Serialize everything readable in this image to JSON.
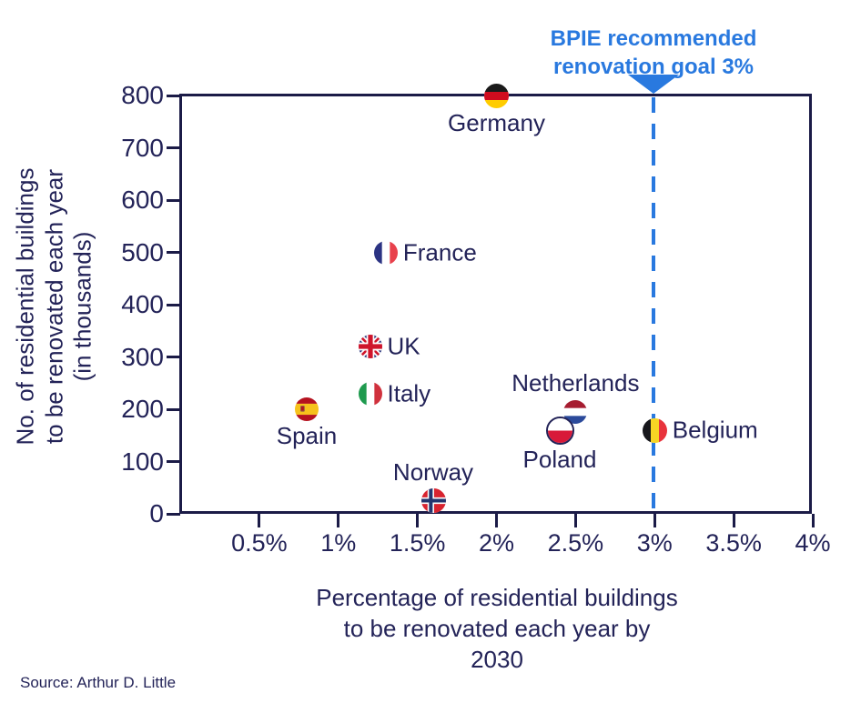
{
  "annotation": {
    "text": "BPIE recommended\nrenovation goal 3%",
    "color": "#2979df"
  },
  "source": "Source: Arthur D. Little",
  "colors": {
    "navy_text": "#232358",
    "axis": "#1b1b47",
    "accent_blue": "#2979df"
  },
  "chart_data": {
    "type": "scatter",
    "title": "",
    "xlabel": "Percentage of residential buildings\nto be renovated each year by 2030",
    "ylabel": "No. of residential buildings\nto be renovated each year\n(in thousands)",
    "xlim": [
      0,
      4
    ],
    "ylim": [
      0,
      800
    ],
    "grid": false,
    "x_tick_labels": [
      "0.5%",
      "1%",
      "1.5%",
      "2%",
      "2.5%",
      "3%",
      "3.5%",
      "4%"
    ],
    "x_tick_values": [
      0.5,
      1,
      1.5,
      2,
      2.5,
      3,
      3.5,
      4
    ],
    "y_tick_values": [
      800,
      700,
      600,
      500,
      400,
      300,
      200,
      100,
      0
    ],
    "reference_line": {
      "x": 3,
      "label": "BPIE recommended renovation goal 3%",
      "style": "dashed",
      "color": "#2979df"
    },
    "points": [
      {
        "country": "Germany",
        "x": 2.0,
        "y": 800,
        "label_pos": "below"
      },
      {
        "country": "France",
        "x": 1.3,
        "y": 500,
        "label_pos": "right"
      },
      {
        "country": "UK",
        "x": 1.2,
        "y": 320,
        "label_pos": "right"
      },
      {
        "country": "Italy",
        "x": 1.2,
        "y": 230,
        "label_pos": "right"
      },
      {
        "country": "Spain",
        "x": 0.8,
        "y": 200,
        "label_pos": "below"
      },
      {
        "country": "Netherlands",
        "x": 2.5,
        "y": 195,
        "label_pos": "above"
      },
      {
        "country": "Poland",
        "x": 2.4,
        "y": 160,
        "label_pos": "below"
      },
      {
        "country": "Belgium",
        "x": 3.0,
        "y": 160,
        "label_pos": "right"
      },
      {
        "country": "Norway",
        "x": 1.6,
        "y": 25,
        "label_pos": "above"
      }
    ]
  },
  "flags": {
    "Germany": {
      "type": "h",
      "colors": [
        "#1a1a1a",
        "#d00c1e",
        "#ffcc00"
      ],
      "size": 27
    },
    "France": {
      "type": "v",
      "colors": [
        "#2b3383",
        "#ffffff",
        "#e8414c"
      ],
      "size": 26
    },
    "UK": {
      "type": "uk",
      "colors": [
        "#29337a",
        "#ffffff",
        "#cf142b"
      ],
      "size": 26
    },
    "Italy": {
      "type": "v",
      "colors": [
        "#1e9a4e",
        "#ffffff",
        "#d0313d"
      ],
      "size": 26
    },
    "Spain": {
      "type": "es",
      "colors": [
        "#b5121f",
        "#f6c21c",
        "#8c5a46"
      ],
      "size": 26
    },
    "Netherlands": {
      "type": "h",
      "colors": [
        "#a61c30",
        "#ffffff",
        "#2b4a9b"
      ],
      "size": 26
    },
    "Poland": {
      "type": "pl",
      "colors": [
        "#ffffff",
        "#d81939",
        "#232358"
      ],
      "size": 31
    },
    "Belgium": {
      "type": "v",
      "colors": [
        "#17171c",
        "#f7d424",
        "#e8333c"
      ],
      "size": 27
    },
    "Norway": {
      "type": "no",
      "colors": [
        "#d8232f",
        "#ffffff",
        "#23356e"
      ],
      "size": 27
    }
  }
}
